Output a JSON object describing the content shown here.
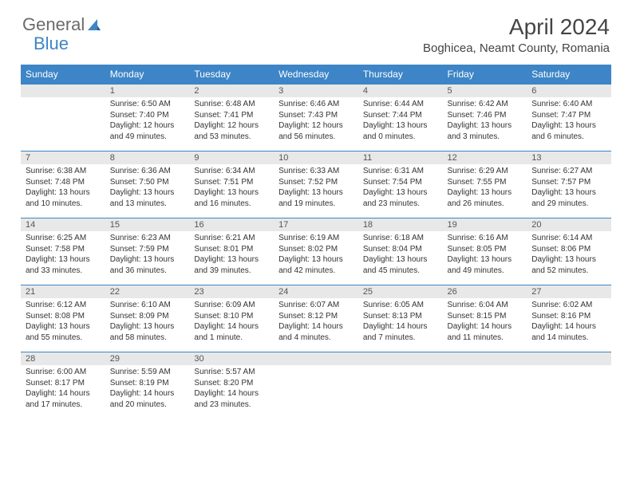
{
  "logo": {
    "text1": "General",
    "text2": "Blue"
  },
  "title": "April 2024",
  "location": "Boghicea, Neamt County, Romania",
  "colors": {
    "header_bg": "#3d85c6",
    "header_text": "#ffffff",
    "daynum_bg": "#e8e8e8",
    "border": "#3d85c6",
    "body_text": "#333333",
    "title_text": "#444444",
    "logo_gray": "#6b6b6b",
    "logo_blue": "#3d85c6"
  },
  "weekdays": [
    "Sunday",
    "Monday",
    "Tuesday",
    "Wednesday",
    "Thursday",
    "Friday",
    "Saturday"
  ],
  "weeks": [
    [
      null,
      {
        "n": "1",
        "sr": "6:50 AM",
        "ss": "7:40 PM",
        "dl": "12 hours and 49 minutes."
      },
      {
        "n": "2",
        "sr": "6:48 AM",
        "ss": "7:41 PM",
        "dl": "12 hours and 53 minutes."
      },
      {
        "n": "3",
        "sr": "6:46 AM",
        "ss": "7:43 PM",
        "dl": "12 hours and 56 minutes."
      },
      {
        "n": "4",
        "sr": "6:44 AM",
        "ss": "7:44 PM",
        "dl": "13 hours and 0 minutes."
      },
      {
        "n": "5",
        "sr": "6:42 AM",
        "ss": "7:46 PM",
        "dl": "13 hours and 3 minutes."
      },
      {
        "n": "6",
        "sr": "6:40 AM",
        "ss": "7:47 PM",
        "dl": "13 hours and 6 minutes."
      }
    ],
    [
      {
        "n": "7",
        "sr": "6:38 AM",
        "ss": "7:48 PM",
        "dl": "13 hours and 10 minutes."
      },
      {
        "n": "8",
        "sr": "6:36 AM",
        "ss": "7:50 PM",
        "dl": "13 hours and 13 minutes."
      },
      {
        "n": "9",
        "sr": "6:34 AM",
        "ss": "7:51 PM",
        "dl": "13 hours and 16 minutes."
      },
      {
        "n": "10",
        "sr": "6:33 AM",
        "ss": "7:52 PM",
        "dl": "13 hours and 19 minutes."
      },
      {
        "n": "11",
        "sr": "6:31 AM",
        "ss": "7:54 PM",
        "dl": "13 hours and 23 minutes."
      },
      {
        "n": "12",
        "sr": "6:29 AM",
        "ss": "7:55 PM",
        "dl": "13 hours and 26 minutes."
      },
      {
        "n": "13",
        "sr": "6:27 AM",
        "ss": "7:57 PM",
        "dl": "13 hours and 29 minutes."
      }
    ],
    [
      {
        "n": "14",
        "sr": "6:25 AM",
        "ss": "7:58 PM",
        "dl": "13 hours and 33 minutes."
      },
      {
        "n": "15",
        "sr": "6:23 AM",
        "ss": "7:59 PM",
        "dl": "13 hours and 36 minutes."
      },
      {
        "n": "16",
        "sr": "6:21 AM",
        "ss": "8:01 PM",
        "dl": "13 hours and 39 minutes."
      },
      {
        "n": "17",
        "sr": "6:19 AM",
        "ss": "8:02 PM",
        "dl": "13 hours and 42 minutes."
      },
      {
        "n": "18",
        "sr": "6:18 AM",
        "ss": "8:04 PM",
        "dl": "13 hours and 45 minutes."
      },
      {
        "n": "19",
        "sr": "6:16 AM",
        "ss": "8:05 PM",
        "dl": "13 hours and 49 minutes."
      },
      {
        "n": "20",
        "sr": "6:14 AM",
        "ss": "8:06 PM",
        "dl": "13 hours and 52 minutes."
      }
    ],
    [
      {
        "n": "21",
        "sr": "6:12 AM",
        "ss": "8:08 PM",
        "dl": "13 hours and 55 minutes."
      },
      {
        "n": "22",
        "sr": "6:10 AM",
        "ss": "8:09 PM",
        "dl": "13 hours and 58 minutes."
      },
      {
        "n": "23",
        "sr": "6:09 AM",
        "ss": "8:10 PM",
        "dl": "14 hours and 1 minute."
      },
      {
        "n": "24",
        "sr": "6:07 AM",
        "ss": "8:12 PM",
        "dl": "14 hours and 4 minutes."
      },
      {
        "n": "25",
        "sr": "6:05 AM",
        "ss": "8:13 PM",
        "dl": "14 hours and 7 minutes."
      },
      {
        "n": "26",
        "sr": "6:04 AM",
        "ss": "8:15 PM",
        "dl": "14 hours and 11 minutes."
      },
      {
        "n": "27",
        "sr": "6:02 AM",
        "ss": "8:16 PM",
        "dl": "14 hours and 14 minutes."
      }
    ],
    [
      {
        "n": "28",
        "sr": "6:00 AM",
        "ss": "8:17 PM",
        "dl": "14 hours and 17 minutes."
      },
      {
        "n": "29",
        "sr": "5:59 AM",
        "ss": "8:19 PM",
        "dl": "14 hours and 20 minutes."
      },
      {
        "n": "30",
        "sr": "5:57 AM",
        "ss": "8:20 PM",
        "dl": "14 hours and 23 minutes."
      },
      null,
      null,
      null,
      null
    ]
  ],
  "labels": {
    "sunrise": "Sunrise:",
    "sunset": "Sunset:",
    "daylight": "Daylight:"
  }
}
